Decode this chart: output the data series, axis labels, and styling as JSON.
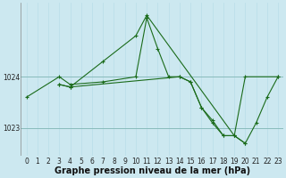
{
  "xlabel": "Graphe pression niveau de la mer (hPa)",
  "background_color": "#cce8f0",
  "grid_color_v": "#b8dde8",
  "grid_color_h": "#88bbbb",
  "line_color": "#1a6b1a",
  "series": [
    {
      "x": [
        0,
        3,
        4,
        7,
        10,
        11,
        12,
        13,
        14,
        15,
        16,
        17,
        18,
        19,
        20,
        23
      ],
      "y": [
        1023.6,
        1024.0,
        1023.85,
        1023.9,
        1024.0,
        1025.15,
        1024.55,
        1024.0,
        1024.0,
        1023.9,
        1023.4,
        1023.15,
        1022.85,
        1022.85,
        1024.0,
        1024.0
      ]
    },
    {
      "x": [
        3,
        4,
        7,
        10,
        11,
        19,
        20
      ],
      "y": [
        1023.85,
        1023.8,
        1024.3,
        1024.8,
        1025.2,
        1022.85,
        1022.7
      ]
    },
    {
      "x": [
        3,
        4,
        14,
        15,
        16,
        17,
        18,
        19,
        20,
        21,
        22,
        23
      ],
      "y": [
        1023.85,
        1023.8,
        1024.0,
        1023.9,
        1023.4,
        1023.1,
        1022.85,
        1022.85,
        1022.7,
        1023.1,
        1023.6,
        1024.0
      ]
    }
  ],
  "yticks": [
    1023,
    1024
  ],
  "ylim": [
    1022.45,
    1025.45
  ],
  "xlim": [
    -0.5,
    23.5
  ],
  "xticks": [
    0,
    1,
    2,
    3,
    4,
    5,
    6,
    7,
    8,
    9,
    10,
    11,
    12,
    13,
    14,
    15,
    16,
    17,
    18,
    19,
    20,
    21,
    22,
    23
  ],
  "tick_fontsize": 5.5,
  "xlabel_fontsize": 7
}
